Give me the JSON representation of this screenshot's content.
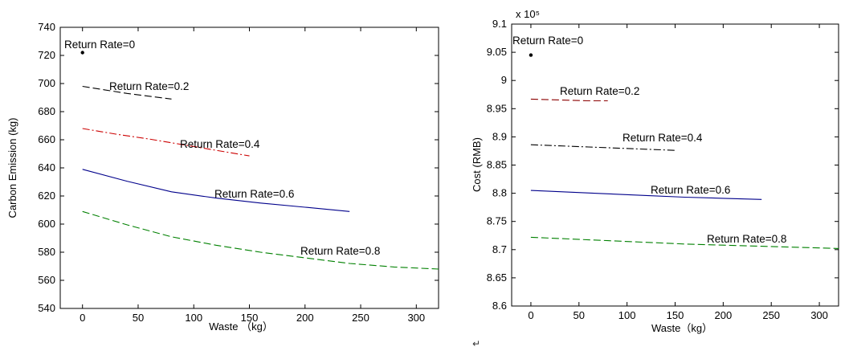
{
  "chart_data": [
    {
      "type": "line",
      "title": "",
      "xlabel": "Waste （kg）",
      "ylabel": "Carbon Emission (kg)",
      "xlim": [
        -20,
        320
      ],
      "ylim": [
        540,
        740
      ],
      "xticks": [
        0,
        50,
        100,
        150,
        200,
        250,
        300
      ],
      "yticks": [
        540,
        560,
        580,
        600,
        620,
        640,
        660,
        680,
        700,
        720,
        740
      ],
      "exponent_label": "",
      "grid": false,
      "series": [
        {
          "annotation": "Return Rate=0",
          "color": "#000000",
          "style": "point",
          "x": [
            0
          ],
          "y": [
            722
          ]
        },
        {
          "annotation": "Return Rate=0.2",
          "color": "#000000",
          "style": "dash",
          "x": [
            0,
            20,
            40,
            60,
            80
          ],
          "y": [
            698,
            695.5,
            693,
            691,
            689
          ]
        },
        {
          "annotation": "Return Rate=0.4",
          "color": "#cc0000",
          "style": "dashdot",
          "x": [
            0,
            30,
            60,
            90,
            120,
            150
          ],
          "y": [
            668,
            664,
            660.5,
            656.5,
            652.5,
            648.5
          ]
        },
        {
          "annotation": "Return Rate=0.6",
          "color": "#00008b",
          "style": "solid",
          "x": [
            0,
            40,
            80,
            120,
            160,
            200,
            240
          ],
          "y": [
            639,
            630.5,
            623,
            618.5,
            615,
            612,
            609
          ]
        },
        {
          "annotation": "Return Rate=0.8",
          "color": "#008000",
          "style": "dash",
          "x": [
            0,
            40,
            80,
            120,
            160,
            200,
            240,
            280,
            320
          ],
          "y": [
            609,
            599.5,
            591,
            585,
            580,
            576,
            572,
            569.5,
            568
          ]
        }
      ]
    },
    {
      "type": "line",
      "title": "",
      "xlabel": "Waste（kg）",
      "ylabel": "Cost (RMB)",
      "xlim": [
        -20,
        320
      ],
      "ylim": [
        8.6,
        9.1
      ],
      "xticks": [
        0,
        50,
        100,
        150,
        200,
        250,
        300
      ],
      "yticks": [
        8.6,
        8.65,
        8.7,
        8.75,
        8.8,
        8.85,
        8.9,
        8.95,
        9,
        9.05,
        9.1
      ],
      "exponent_label": "x 10⁵",
      "grid": false,
      "series": [
        {
          "annotation": "Return Rate=0",
          "color": "#000000",
          "style": "point",
          "x": [
            0
          ],
          "y": [
            9.045
          ]
        },
        {
          "annotation": "Return Rate=0.2",
          "color": "#8b0000",
          "style": "dash",
          "x": [
            0,
            20,
            40,
            60,
            80
          ],
          "y": [
            8.967,
            8.966,
            8.965,
            8.964,
            8.964
          ]
        },
        {
          "annotation": "Return Rate=0.4",
          "color": "#000000",
          "style": "dashdot",
          "x": [
            0,
            30,
            60,
            90,
            120,
            150
          ],
          "y": [
            8.886,
            8.884,
            8.882,
            8.88,
            8.878,
            8.876
          ]
        },
        {
          "annotation": "Return Rate=0.6",
          "color": "#00008b",
          "style": "solid",
          "x": [
            0,
            40,
            80,
            120,
            160,
            200,
            240
          ],
          "y": [
            8.805,
            8.802,
            8.799,
            8.796,
            8.793,
            8.791,
            8.789
          ]
        },
        {
          "annotation": "Return Rate=0.8",
          "color": "#008000",
          "style": "dash",
          "x": [
            0,
            40,
            80,
            120,
            160,
            200,
            240,
            280,
            320
          ],
          "y": [
            8.722,
            8.719,
            8.716,
            8.713,
            8.71,
            8.708,
            8.706,
            8.704,
            8.702
          ]
        }
      ]
    }
  ],
  "page_marks": {
    "return_symbol": "↵"
  }
}
